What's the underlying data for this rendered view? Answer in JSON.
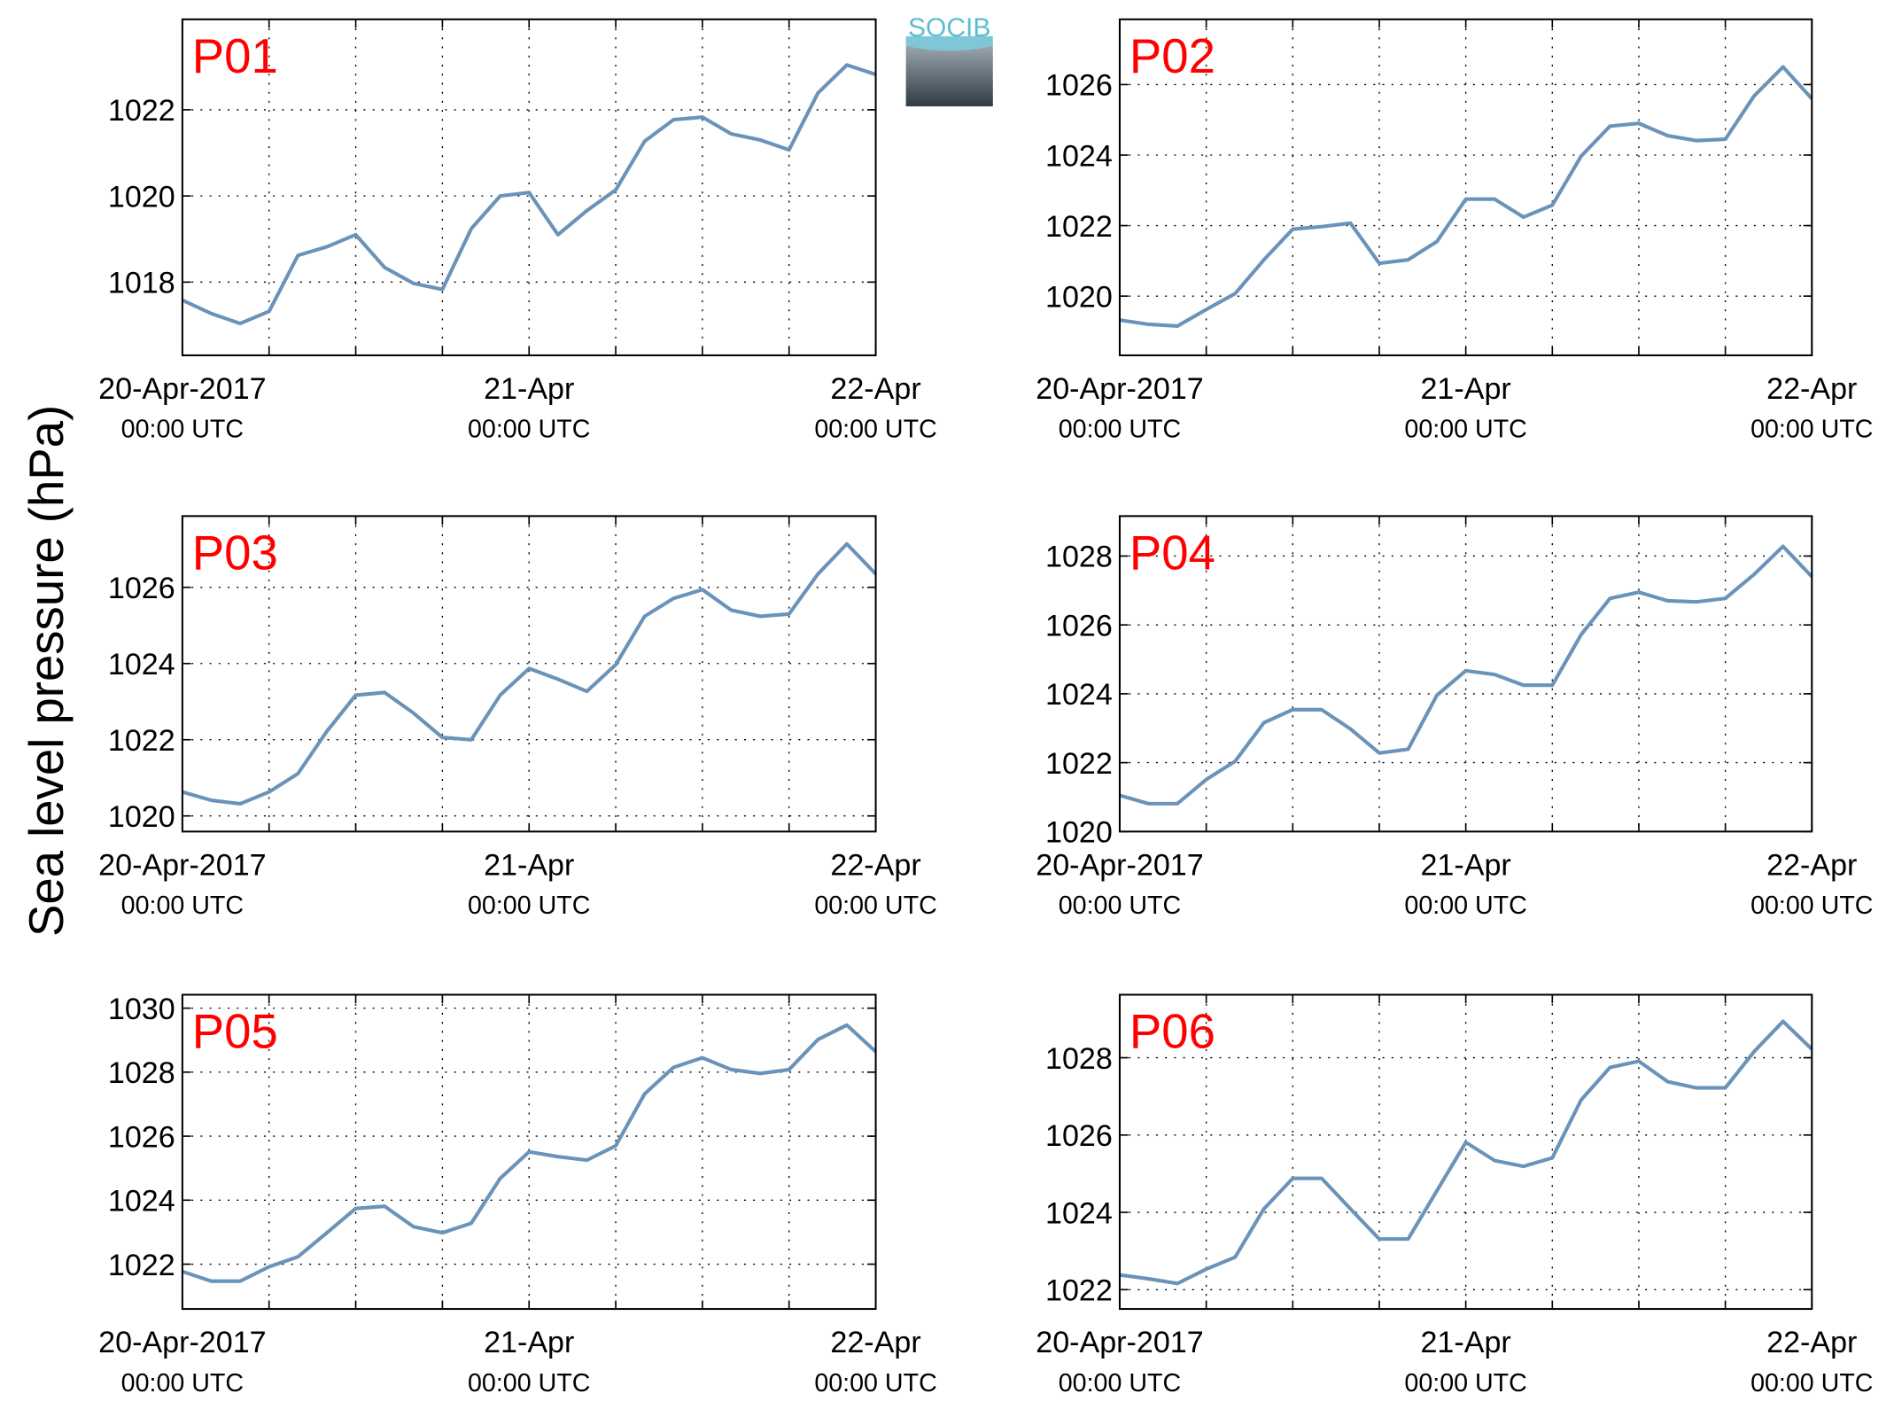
{
  "axis_label": "Sea level pressure (hPa)",
  "logo": "SOCIB",
  "chart_data": [
    {
      "type": "line",
      "title": "P01",
      "xlim": [
        0,
        48
      ],
      "ylim": [
        1016.3,
        1024.1
      ],
      "yticks": [
        1018,
        1020,
        1022
      ],
      "xticks": [
        {
          "value": 0,
          "label": [
            "20-Apr-2017",
            "00:00 UTC"
          ]
        },
        {
          "value": 24,
          "label": [
            "21-Apr",
            "00:00 UTC"
          ]
        },
        {
          "value": 48,
          "label": [
            "22-Apr",
            "00:00 UTC"
          ]
        }
      ],
      "xminorticks": [
        6,
        12,
        18,
        30,
        36,
        42
      ],
      "x": [
        0,
        2,
        4,
        6,
        8,
        10,
        12,
        14,
        16,
        18,
        20,
        22,
        24,
        26,
        28,
        30,
        32,
        34,
        36,
        38,
        40,
        42,
        44,
        46,
        48
      ],
      "series": [
        {
          "color": "#6a93ba",
          "values": [
            1017.58,
            1017.27,
            1017.04,
            1017.32,
            1018.62,
            1018.82,
            1019.1,
            1018.34,
            1017.97,
            1017.83,
            1019.24,
            1020.0,
            1020.08,
            1019.1,
            1019.66,
            1020.14,
            1021.27,
            1021.77,
            1021.83,
            1021.44,
            1021.3,
            1021.07,
            1022.39,
            1023.04,
            1022.82
          ]
        }
      ]
    },
    {
      "type": "line",
      "title": "P02",
      "xlim": [
        0,
        48
      ],
      "ylim": [
        1018.32,
        1027.85
      ],
      "yticks": [
        1020,
        1022,
        1024,
        1026
      ],
      "xticks": [
        {
          "value": 0,
          "label": [
            "20-Apr-2017",
            "00:00 UTC"
          ]
        },
        {
          "value": 24,
          "label": [
            "21-Apr",
            "00:00 UTC"
          ]
        },
        {
          "value": 48,
          "label": [
            "22-Apr",
            "00:00 UTC"
          ]
        }
      ],
      "xminorticks": [
        6,
        12,
        18,
        30,
        36,
        42
      ],
      "x": [
        0,
        2,
        4,
        6,
        8,
        10,
        12,
        14,
        16,
        18,
        20,
        22,
        24,
        26,
        28,
        30,
        32,
        34,
        36,
        38,
        40,
        42,
        44,
        46,
        48
      ],
      "series": [
        {
          "color": "#6a93ba",
          "values": [
            1019.32,
            1019.2,
            1019.15,
            1019.62,
            1020.07,
            1021.03,
            1021.9,
            1021.97,
            1022.07,
            1020.93,
            1021.03,
            1021.55,
            1022.75,
            1022.75,
            1022.24,
            1022.58,
            1023.97,
            1024.82,
            1024.9,
            1024.55,
            1024.41,
            1024.45,
            1025.68,
            1026.5,
            1025.6
          ]
        }
      ]
    },
    {
      "type": "line",
      "title": "P03",
      "xlim": [
        0,
        48
      ],
      "ylim": [
        1019.59,
        1027.87
      ],
      "yticks": [
        1020,
        1022,
        1024,
        1026
      ],
      "xticks": [
        {
          "value": 0,
          "label": [
            "20-Apr-2017",
            "00:00 UTC"
          ]
        },
        {
          "value": 24,
          "label": [
            "21-Apr",
            "00:00 UTC"
          ]
        },
        {
          "value": 48,
          "label": [
            "22-Apr",
            "00:00 UTC"
          ]
        }
      ],
      "xminorticks": [
        6,
        12,
        18,
        30,
        36,
        42
      ],
      "x": [
        0,
        2,
        4,
        6,
        8,
        10,
        12,
        14,
        16,
        18,
        20,
        22,
        24,
        26,
        28,
        30,
        32,
        34,
        36,
        38,
        40,
        42,
        44,
        46,
        48
      ],
      "series": [
        {
          "color": "#6a93ba",
          "values": [
            1020.63,
            1020.41,
            1020.32,
            1020.63,
            1021.11,
            1022.22,
            1023.17,
            1023.24,
            1022.7,
            1022.06,
            1022.0,
            1023.17,
            1023.87,
            1023.59,
            1023.27,
            1023.97,
            1025.24,
            1025.71,
            1025.94,
            1025.4,
            1025.24,
            1025.3,
            1026.35,
            1027.14,
            1026.35
          ]
        }
      ]
    },
    {
      "type": "line",
      "title": "P04",
      "xlim": [
        0,
        48
      ],
      "ylim": [
        1020,
        1029.16
      ],
      "yticks": [
        1020,
        1022,
        1024,
        1026,
        1028
      ],
      "xticks": [
        {
          "value": 0,
          "label": [
            "20-Apr-2017",
            "00:00 UTC"
          ]
        },
        {
          "value": 24,
          "label": [
            "21-Apr",
            "00:00 UTC"
          ]
        },
        {
          "value": 48,
          "label": [
            "22-Apr",
            "00:00 UTC"
          ]
        }
      ],
      "xminorticks": [
        6,
        12,
        18,
        30,
        36,
        42
      ],
      "x": [
        0,
        2,
        4,
        6,
        8,
        10,
        12,
        14,
        16,
        18,
        20,
        22,
        24,
        26,
        28,
        30,
        32,
        34,
        36,
        38,
        40,
        42,
        44,
        46,
        48
      ],
      "series": [
        {
          "color": "#6a93ba",
          "values": [
            1021.05,
            1020.81,
            1020.81,
            1021.51,
            1022.04,
            1023.16,
            1023.54,
            1023.54,
            1022.98,
            1022.28,
            1022.39,
            1023.96,
            1024.67,
            1024.56,
            1024.25,
            1024.25,
            1025.72,
            1026.77,
            1026.95,
            1026.7,
            1026.67,
            1026.77,
            1027.47,
            1028.28,
            1027.4
          ]
        }
      ]
    },
    {
      "type": "line",
      "title": "P05",
      "xlim": [
        0,
        48
      ],
      "ylim": [
        1020.6,
        1030.42
      ],
      "yticks": [
        1022,
        1024,
        1026,
        1028,
        1030
      ],
      "xticks": [
        {
          "value": 0,
          "label": [
            "20-Apr-2017",
            "00:00 UTC"
          ]
        },
        {
          "value": 24,
          "label": [
            "21-Apr",
            "00:00 UTC"
          ]
        },
        {
          "value": 48,
          "label": [
            "22-Apr",
            "00:00 UTC"
          ]
        }
      ],
      "xminorticks": [
        6,
        12,
        18,
        30,
        36,
        42
      ],
      "x": [
        0,
        2,
        4,
        6,
        8,
        10,
        12,
        14,
        16,
        18,
        20,
        22,
        24,
        26,
        28,
        30,
        32,
        34,
        36,
        38,
        40,
        42,
        44,
        46,
        48
      ],
      "series": [
        {
          "color": "#6a93ba",
          "values": [
            1021.77,
            1021.47,
            1021.47,
            1021.92,
            1022.23,
            1022.98,
            1023.74,
            1023.81,
            1023.17,
            1022.98,
            1023.28,
            1024.68,
            1025.51,
            1025.36,
            1025.25,
            1025.7,
            1027.32,
            1028.15,
            1028.45,
            1028.08,
            1027.96,
            1028.08,
            1029.02,
            1029.47,
            1028.64
          ]
        }
      ]
    },
    {
      "type": "line",
      "title": "P06",
      "xlim": [
        0,
        48
      ],
      "ylim": [
        1021.5,
        1029.63
      ],
      "yticks": [
        1022,
        1024,
        1026,
        1028
      ],
      "xticks": [
        {
          "value": 0,
          "label": [
            "20-Apr-2017",
            "00:00 UTC"
          ]
        },
        {
          "value": 24,
          "label": [
            "21-Apr",
            "00:00 UTC"
          ]
        },
        {
          "value": 48,
          "label": [
            "22-Apr",
            "00:00 UTC"
          ]
        }
      ],
      "xminorticks": [
        6,
        12,
        18,
        30,
        36,
        42
      ],
      "x": [
        0,
        2,
        4,
        6,
        8,
        10,
        12,
        14,
        16,
        18,
        20,
        22,
        24,
        26,
        28,
        30,
        32,
        34,
        36,
        38,
        40,
        42,
        44,
        46,
        48
      ],
      "series": [
        {
          "color": "#6a93ba",
          "values": [
            1022.38,
            1022.28,
            1022.16,
            1022.53,
            1022.84,
            1024.09,
            1024.88,
            1024.88,
            1024.09,
            1023.31,
            1023.31,
            1024.56,
            1025.81,
            1025.34,
            1025.19,
            1025.41,
            1026.91,
            1027.75,
            1027.91,
            1027.38,
            1027.22,
            1027.22,
            1028.16,
            1028.94,
            1028.22
          ]
        }
      ]
    }
  ]
}
